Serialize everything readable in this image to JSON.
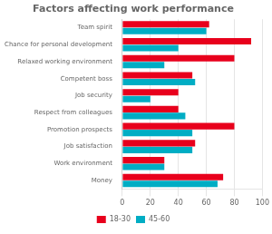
{
  "chart_data": {
    "type": "bar",
    "orientation": "horizontal",
    "title": "Factors affecting work performance",
    "categories": [
      "Money",
      "Work environment",
      "Job satisfaction",
      "Promotion prospects",
      "Respect from colleagues",
      "Job security",
      "Competent boss",
      "Relaxed working environment",
      "Chance for personal development",
      "Team spirit"
    ],
    "series": [
      {
        "name": "18-30",
        "color": "#e8001c",
        "values": [
          72,
          30,
          52,
          80,
          40,
          40,
          50,
          80,
          92,
          62
        ]
      },
      {
        "name": "45-60",
        "color": "#00adc4",
        "values": [
          68,
          30,
          50,
          50,
          45,
          20,
          52,
          30,
          40,
          60
        ]
      }
    ],
    "xlim": [
      0,
      100
    ],
    "xticks": [
      0,
      20,
      40,
      60,
      80,
      100
    ],
    "grid": true,
    "legend": "bottom"
  }
}
